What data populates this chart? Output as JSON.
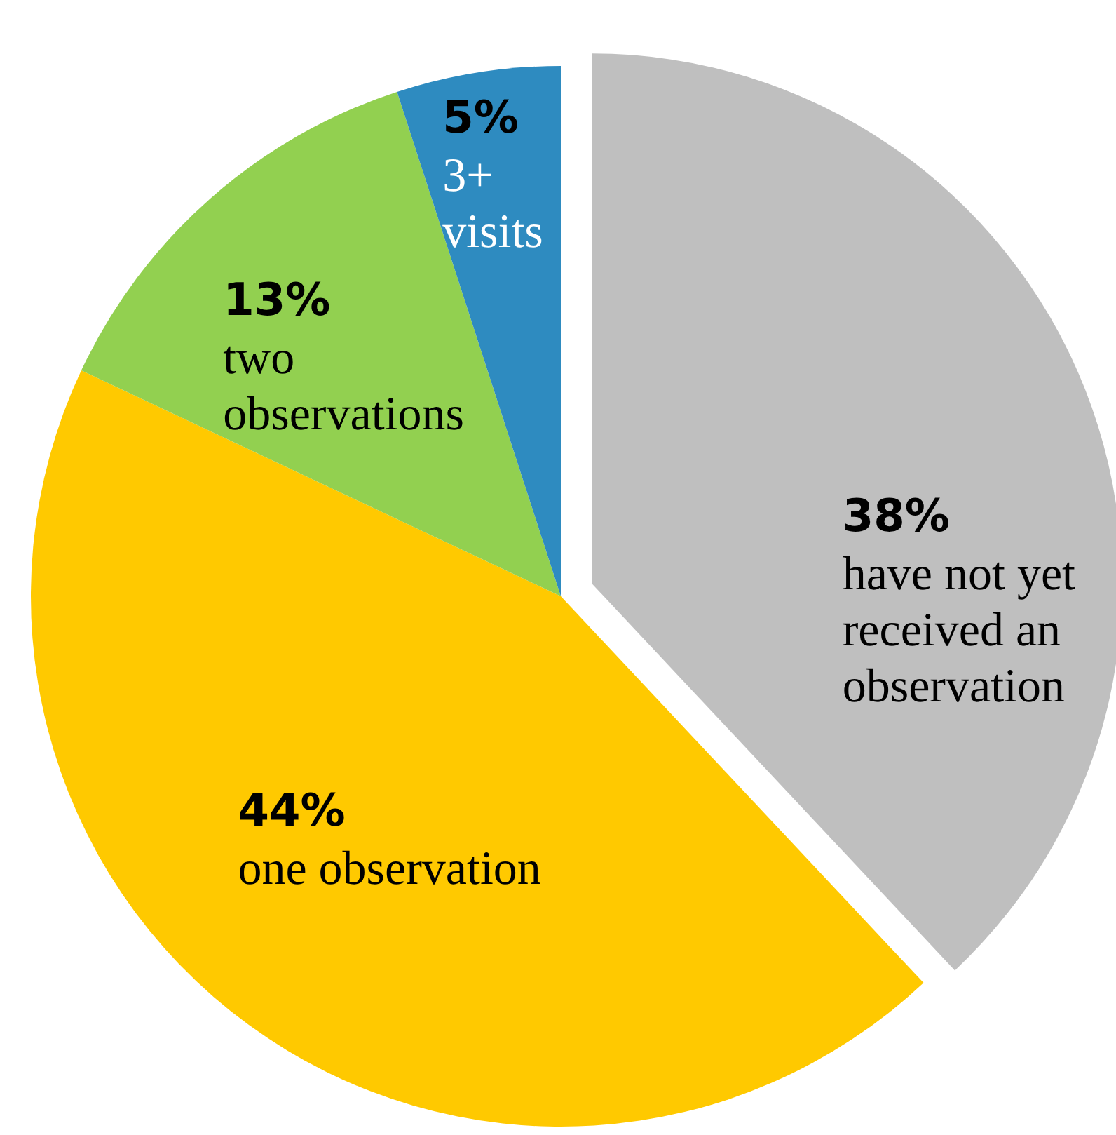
{
  "chart_data": {
    "type": "pie",
    "categories": [
      "have not yet received an observation",
      "one observation",
      "two observations",
      "3+ visits"
    ],
    "values": [
      38,
      44,
      13,
      5
    ],
    "colors": [
      "#bfbfbf",
      "#ffc900",
      "#92d050",
      "#2e8bc0"
    ],
    "value_labels": [
      "38%",
      "44%",
      "13%",
      "5%"
    ]
  }
}
